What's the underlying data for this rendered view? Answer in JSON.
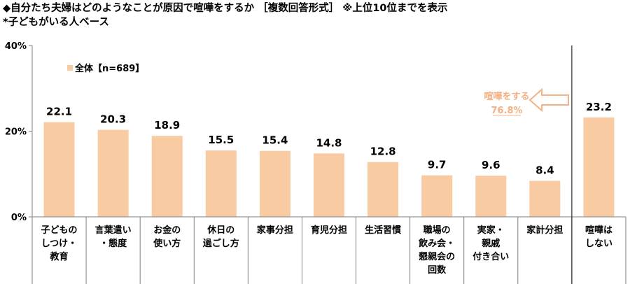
{
  "title": "◆自分たち夫婦はどのようなことが原因で喧嘩をするか ［複数回答形式］ ※上位10位までを表示",
  "subtitle": "*子どもがいる人ベース",
  "colors": {
    "bar": "#f8cba3",
    "annotation": "#f4b183",
    "axis": "#7f7f7f",
    "divider": "#000000"
  },
  "chart_data": {
    "type": "bar",
    "title": "◆自分たち夫婦はどのようなことが原因で喧嘩をするか ［複数回答形式］ ※上位10位までを表示",
    "subtitle": "*子どもがいる人ベース",
    "xlabel": "",
    "ylabel": "",
    "ylim": [
      0,
      40
    ],
    "yticks": [
      "0%",
      "20%",
      "40%"
    ],
    "grid": false,
    "legend_position": "top-left",
    "categories": [
      [
        "子どもの",
        "しつけ・",
        "教育"
      ],
      [
        "言葉遣い",
        "・態度"
      ],
      [
        "お金の",
        "使い方"
      ],
      [
        "休日の",
        "過ごし方"
      ],
      [
        "家事分担"
      ],
      [
        "育児分担"
      ],
      [
        "生活習慣"
      ],
      [
        "職場の",
        "飲み会・",
        "懇親会の",
        "回数"
      ],
      [
        "実家・",
        "親戚",
        "付き合い"
      ],
      [
        "家計分担"
      ],
      [
        "喧嘩は",
        "しない"
      ]
    ],
    "series": [
      {
        "name": "全体【n=689】",
        "values": [
          22.1,
          20.3,
          18.9,
          15.5,
          15.4,
          14.8,
          12.8,
          9.7,
          9.6,
          8.4,
          23.2
        ]
      }
    ],
    "value_labels": [
      "22.1",
      "20.3",
      "18.9",
      "15.5",
      "15.4",
      "14.8",
      "12.8",
      "9.7",
      "9.6",
      "8.4",
      "23.2"
    ],
    "annotation": {
      "line1": "喧嘩をする",
      "line2": "76.8%"
    }
  }
}
